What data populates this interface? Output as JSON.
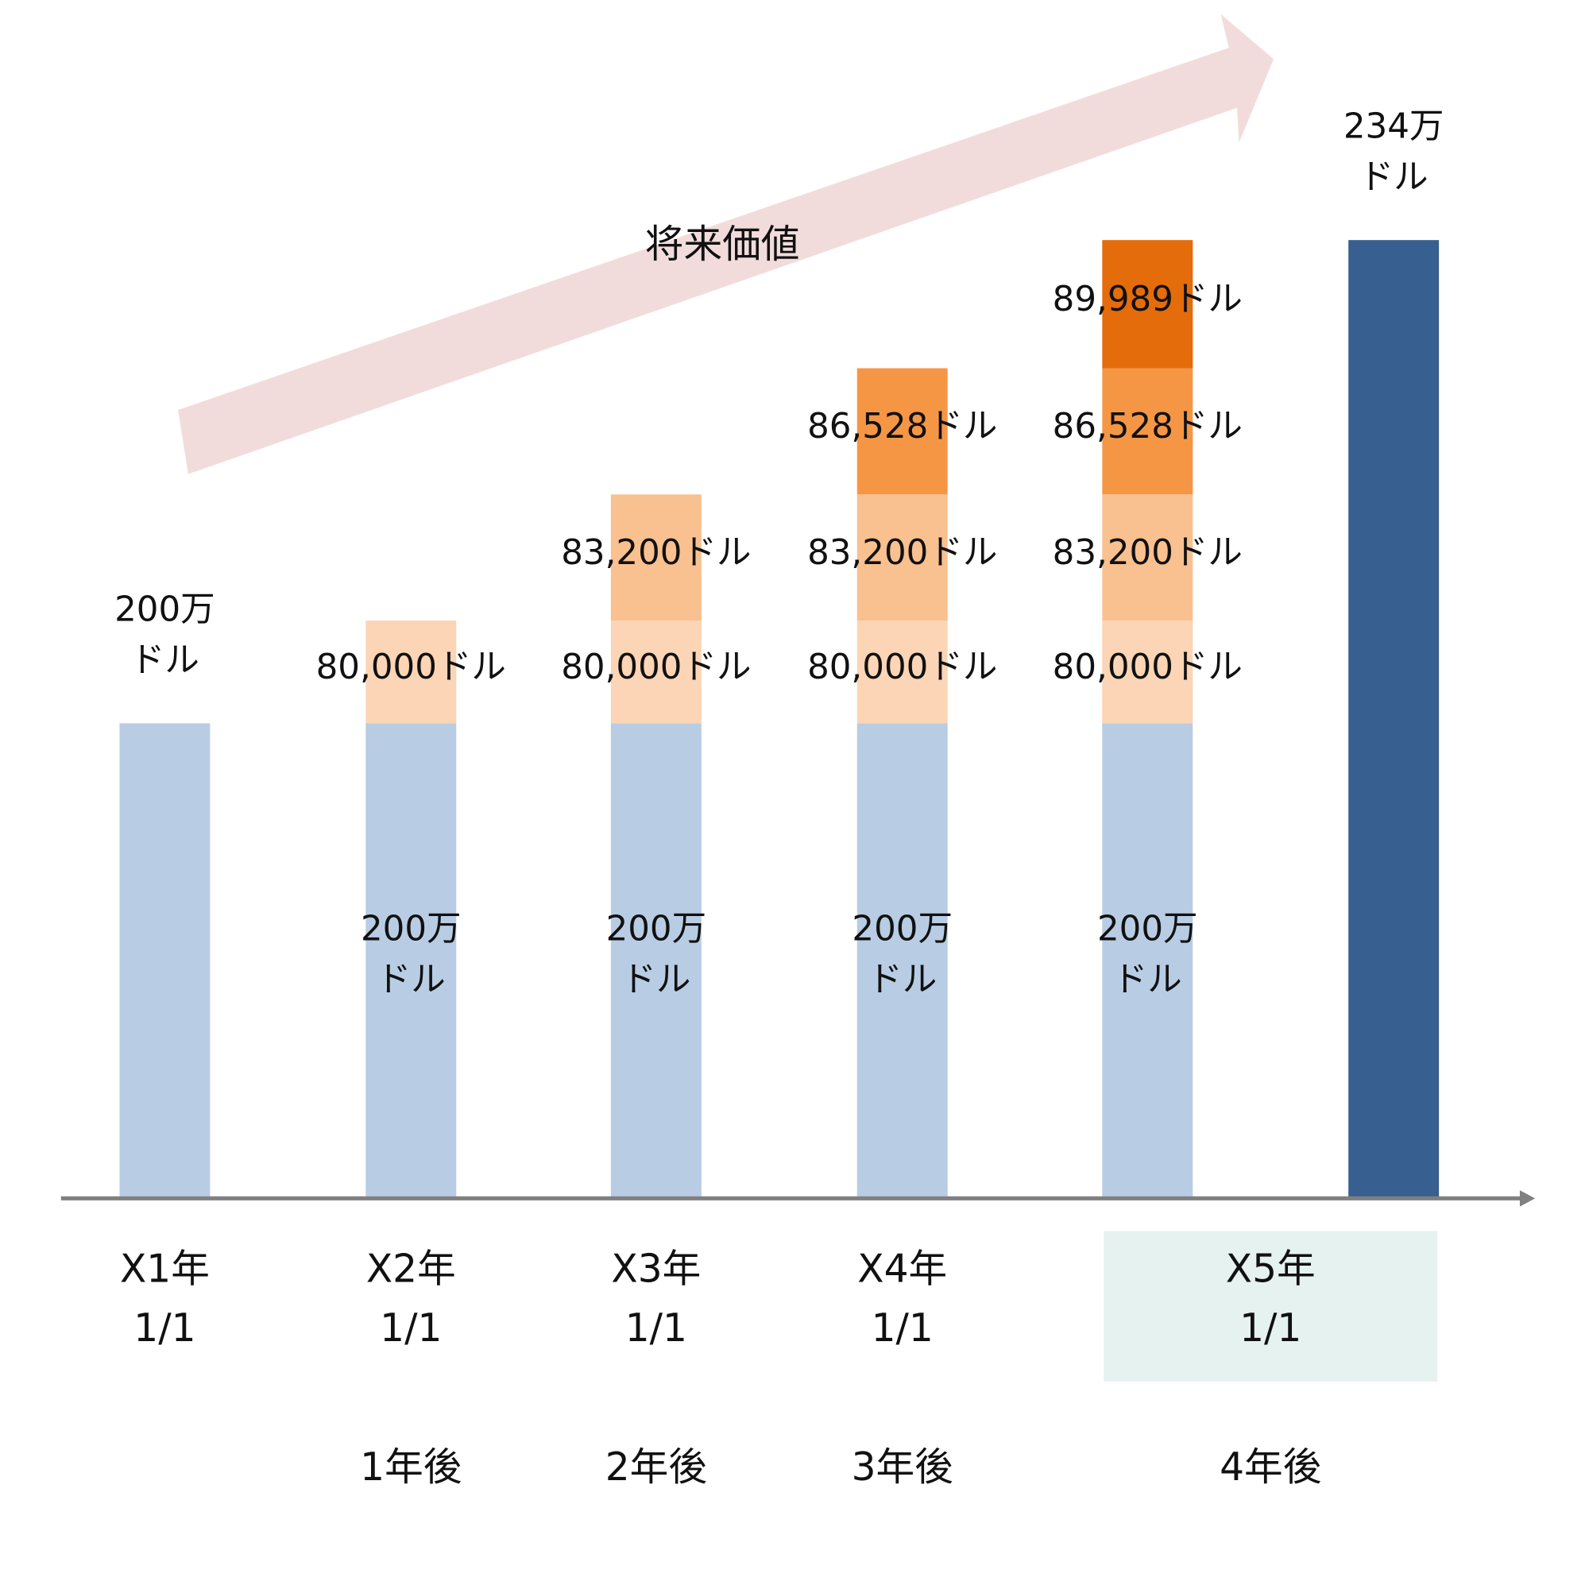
{
  "arrow_label": "将来価値",
  "columns": [
    {
      "date": [
        "X1年",
        "1/1"
      ],
      "top_label": [
        "200万",
        "ドル"
      ],
      "segments": [
        {
          "color": "#b8cde4"
        }
      ]
    },
    {
      "date": [
        "X2年",
        "1/1"
      ],
      "elapsed": "1年後",
      "segments": [
        {
          "color": "#b8cde4",
          "label": [
            "200万",
            "ドル"
          ]
        },
        {
          "color": "#fbd5b5",
          "label": [
            "80,000ドル"
          ]
        }
      ]
    },
    {
      "date": [
        "X3年",
        "1/1"
      ],
      "elapsed": "2年後",
      "segments": [
        {
          "color": "#b8cde4",
          "label": [
            "200万",
            "ドル"
          ]
        },
        {
          "color": "#fbd5b5",
          "label": [
            "80,000ドル"
          ]
        },
        {
          "color": "#f9c090",
          "label": [
            "83,200ドル"
          ]
        }
      ]
    },
    {
      "date": [
        "X4年",
        "1/1"
      ],
      "elapsed": "3年後",
      "segments": [
        {
          "color": "#b8cde4",
          "label": [
            "200万",
            "ドル"
          ]
        },
        {
          "color": "#fbd5b5",
          "label": [
            "80,000ドル"
          ]
        },
        {
          "color": "#f9c090",
          "label": [
            "83,200ドル"
          ]
        },
        {
          "color": "#f59645",
          "label": [
            "86,528ドル"
          ]
        }
      ]
    },
    {
      "date": [
        "X5年",
        "1/1"
      ],
      "elapsed": "4年後",
      "highlight": true,
      "segments": [
        {
          "color": "#b8cde4",
          "label": [
            "200万",
            "ドル"
          ]
        },
        {
          "color": "#fbd5b5",
          "label": [
            "80,000ドル"
          ]
        },
        {
          "color": "#f9c090",
          "label": [
            "83,200ドル"
          ]
        },
        {
          "color": "#f59645",
          "label": [
            "86,528ドル"
          ]
        },
        {
          "color": "#e46c0a",
          "label": [
            "89,989ドル"
          ]
        }
      ]
    },
    {
      "top_label": [
        "234万",
        "ドル"
      ],
      "segments": [
        {
          "color": "#375f8f",
          "full": true
        }
      ]
    }
  ]
}
